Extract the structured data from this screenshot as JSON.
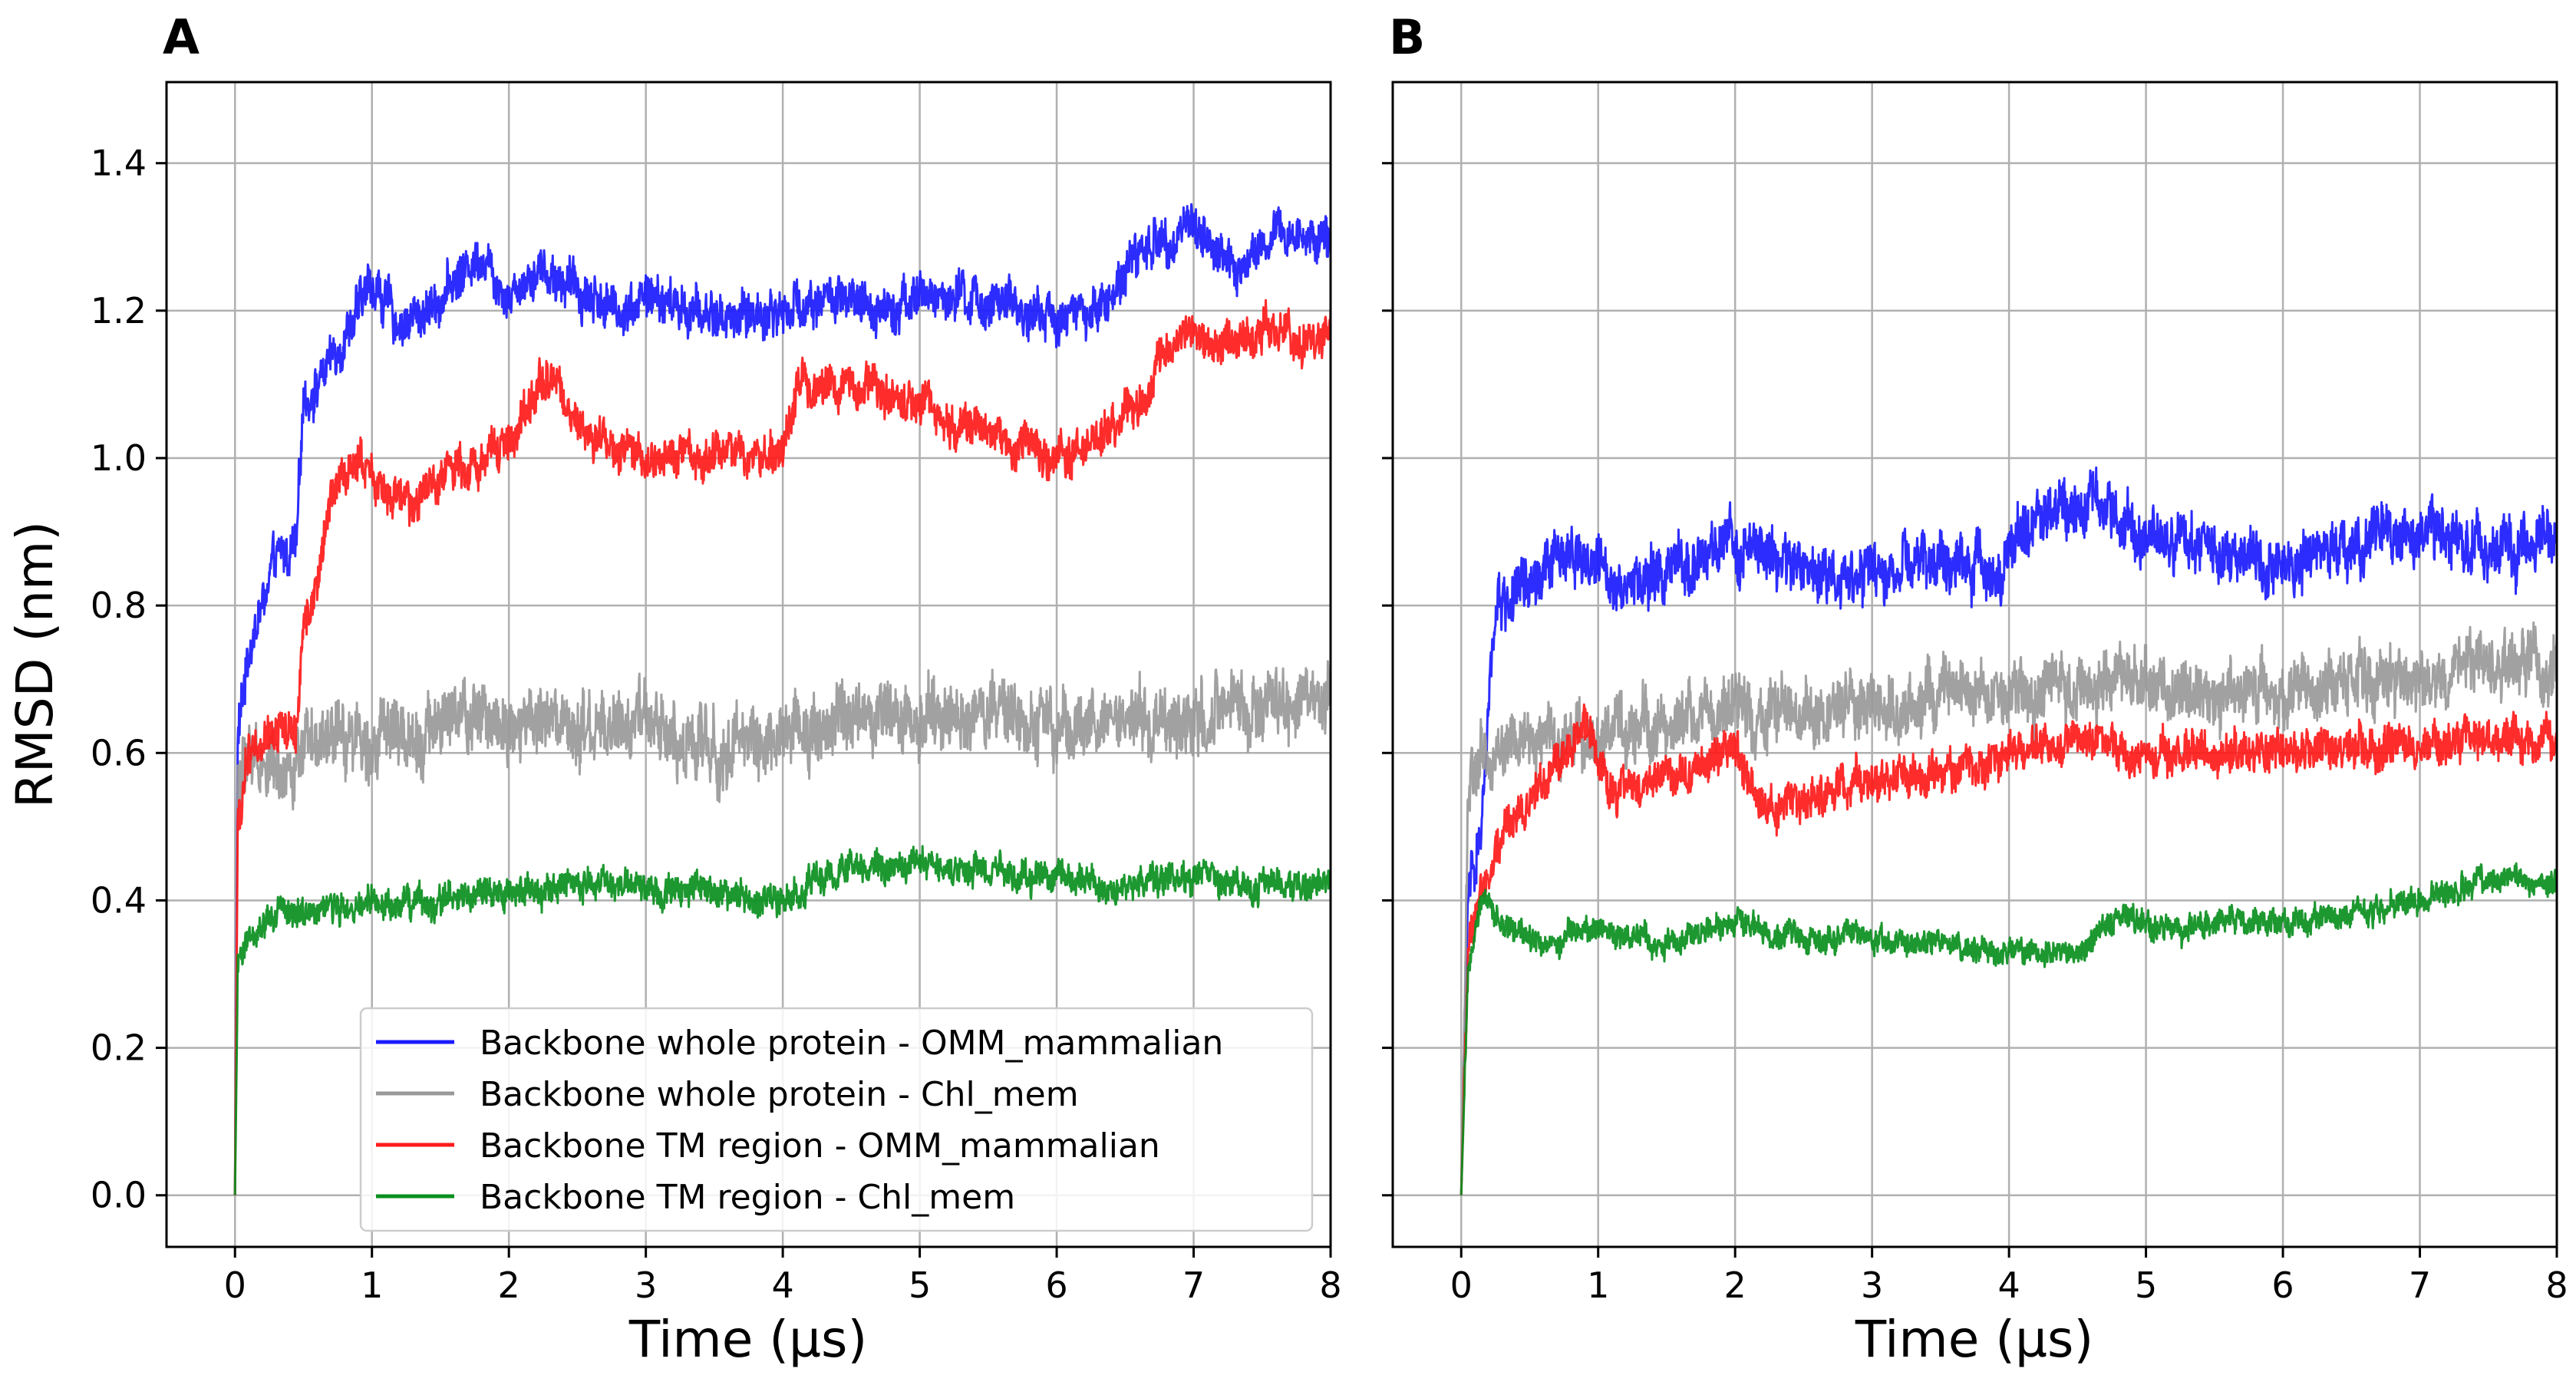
{
  "chart_data": [
    {
      "panel_label": "A",
      "type": "line",
      "xlabel": "Time (µs)",
      "ylabel": "RMSD (nm)",
      "xlim": [
        -0.5,
        8
      ],
      "ylim": [
        -0.07,
        1.51
      ],
      "xticks": [
        0,
        1,
        2,
        3,
        4,
        5,
        6,
        7,
        8
      ],
      "xtick_labels": [
        "0",
        "1",
        "2",
        "3",
        "4",
        "5",
        "6",
        "7",
        "8"
      ],
      "yticks": [
        0.0,
        0.2,
        0.4,
        0.6,
        0.8,
        1.0,
        1.2,
        1.4
      ],
      "ytick_labels": [
        "0.0",
        "0.2",
        "0.4",
        "0.6",
        "0.8",
        "1.0",
        "1.2",
        "1.4"
      ],
      "grid": true,
      "legend_position": "lower-center",
      "series": [
        {
          "name": "Backbone whole protein - OMM_mammalian",
          "color": "#1a1aff",
          "noise": 0.045,
          "points": [
            [
              0,
              0.0
            ],
            [
              0.02,
              0.62
            ],
            [
              0.1,
              0.74
            ],
            [
              0.2,
              0.8
            ],
            [
              0.3,
              0.86
            ],
            [
              0.45,
              0.88
            ],
            [
              0.5,
              1.08
            ],
            [
              0.6,
              1.1
            ],
            [
              0.75,
              1.15
            ],
            [
              0.9,
              1.2
            ],
            [
              1.0,
              1.24
            ],
            [
              1.2,
              1.18
            ],
            [
              1.4,
              1.2
            ],
            [
              1.6,
              1.24
            ],
            [
              1.8,
              1.28
            ],
            [
              2.0,
              1.22
            ],
            [
              2.2,
              1.26
            ],
            [
              2.5,
              1.23
            ],
            [
              2.8,
              1.2
            ],
            [
              3.0,
              1.22
            ],
            [
              3.3,
              1.2
            ],
            [
              3.6,
              1.19
            ],
            [
              4.0,
              1.2
            ],
            [
              4.3,
              1.22
            ],
            [
              4.6,
              1.2
            ],
            [
              5.0,
              1.22
            ],
            [
              5.5,
              1.21
            ],
            [
              6.0,
              1.19
            ],
            [
              6.3,
              1.2
            ],
            [
              6.6,
              1.28
            ],
            [
              7.0,
              1.32
            ],
            [
              7.3,
              1.25
            ],
            [
              7.6,
              1.3
            ],
            [
              8.0,
              1.3
            ]
          ]
        },
        {
          "name": "Backbone whole protein - Chl_mem",
          "color": "#999999",
          "noise": 0.065,
          "points": [
            [
              0,
              0.0
            ],
            [
              0.02,
              0.55
            ],
            [
              0.1,
              0.6
            ],
            [
              0.3,
              0.58
            ],
            [
              0.6,
              0.6
            ],
            [
              0.9,
              0.63
            ],
            [
              1.2,
              0.62
            ],
            [
              1.5,
              0.64
            ],
            [
              2.0,
              0.65
            ],
            [
              2.5,
              0.62
            ],
            [
              3.0,
              0.64
            ],
            [
              3.5,
              0.6
            ],
            [
              4.0,
              0.63
            ],
            [
              4.5,
              0.64
            ],
            [
              5.0,
              0.65
            ],
            [
              5.5,
              0.66
            ],
            [
              6.0,
              0.62
            ],
            [
              6.5,
              0.65
            ],
            [
              7.0,
              0.64
            ],
            [
              7.5,
              0.66
            ],
            [
              8.0,
              0.67
            ]
          ]
        },
        {
          "name": "Backbone TM region - OMM_mammalian",
          "color": "#ff1a1a",
          "noise": 0.04,
          "points": [
            [
              0,
              0.0
            ],
            [
              0.02,
              0.5
            ],
            [
              0.1,
              0.6
            ],
            [
              0.3,
              0.64
            ],
            [
              0.45,
              0.62
            ],
            [
              0.5,
              0.78
            ],
            [
              0.6,
              0.82
            ],
            [
              0.7,
              0.95
            ],
            [
              0.9,
              1.0
            ],
            [
              1.1,
              0.95
            ],
            [
              1.3,
              0.93
            ],
            [
              1.5,
              0.98
            ],
            [
              1.8,
              1.0
            ],
            [
              2.0,
              1.02
            ],
            [
              2.3,
              1.12
            ],
            [
              2.5,
              1.04
            ],
            [
              2.8,
              1.0
            ],
            [
              3.2,
              1.0
            ],
            [
              3.6,
              1.01
            ],
            [
              4.0,
              1.0
            ],
            [
              4.1,
              1.1
            ],
            [
              4.5,
              1.1
            ],
            [
              5.0,
              1.07
            ],
            [
              5.5,
              1.04
            ],
            [
              6.0,
              1.0
            ],
            [
              6.3,
              1.03
            ],
            [
              6.6,
              1.08
            ],
            [
              6.9,
              1.17
            ],
            [
              7.2,
              1.15
            ],
            [
              7.5,
              1.18
            ],
            [
              7.8,
              1.16
            ],
            [
              8.0,
              1.17
            ]
          ]
        },
        {
          "name": "Backbone TM region - Chl_mem",
          "color": "#0a8f1e",
          "noise": 0.03,
          "points": [
            [
              0,
              0.0
            ],
            [
              0.02,
              0.3
            ],
            [
              0.1,
              0.36
            ],
            [
              0.3,
              0.38
            ],
            [
              0.6,
              0.39
            ],
            [
              1.0,
              0.39
            ],
            [
              1.5,
              0.4
            ],
            [
              2.0,
              0.41
            ],
            [
              2.5,
              0.42
            ],
            [
              3.0,
              0.42
            ],
            [
              3.5,
              0.41
            ],
            [
              4.0,
              0.4
            ],
            [
              4.5,
              0.44
            ],
            [
              5.0,
              0.45
            ],
            [
              5.5,
              0.44
            ],
            [
              6.0,
              0.43
            ],
            [
              6.5,
              0.42
            ],
            [
              7.0,
              0.43
            ],
            [
              7.5,
              0.42
            ],
            [
              8.0,
              0.42
            ]
          ]
        }
      ],
      "legend": [
        "Backbone whole protein - OMM_mammalian",
        "Backbone whole protein - Chl_mem",
        "Backbone TM region - OMM_mammalian",
        "Backbone TM region - Chl_mem"
      ]
    },
    {
      "panel_label": "B",
      "type": "line",
      "xlabel": "Time (µs)",
      "ylabel": "",
      "xlim": [
        -0.5,
        8
      ],
      "ylim": [
        -0.07,
        1.51
      ],
      "xticks": [
        0,
        1,
        2,
        3,
        4,
        5,
        6,
        7,
        8
      ],
      "xtick_labels": [
        "0",
        "1",
        "2",
        "3",
        "4",
        "5",
        "6",
        "7",
        "8"
      ],
      "yticks": [
        0.0,
        0.2,
        0.4,
        0.6,
        0.8,
        1.0,
        1.2,
        1.4
      ],
      "grid": true,
      "series": [
        {
          "name": "Backbone whole protein - OMM_mammalian",
          "color": "#1a1aff",
          "noise": 0.055,
          "points": [
            [
              0,
              0.0
            ],
            [
              0.05,
              0.4
            ],
            [
              0.15,
              0.5
            ],
            [
              0.25,
              0.8
            ],
            [
              0.5,
              0.82
            ],
            [
              0.8,
              0.88
            ],
            [
              1.0,
              0.85
            ],
            [
              1.3,
              0.83
            ],
            [
              1.6,
              0.85
            ],
            [
              2.0,
              0.88
            ],
            [
              2.5,
              0.85
            ],
            [
              3.0,
              0.84
            ],
            [
              3.5,
              0.86
            ],
            [
              3.9,
              0.85
            ],
            [
              4.2,
              0.92
            ],
            [
              4.6,
              0.95
            ],
            [
              5.0,
              0.9
            ],
            [
              5.5,
              0.88
            ],
            [
              6.0,
              0.86
            ],
            [
              6.5,
              0.88
            ],
            [
              7.0,
              0.9
            ],
            [
              7.5,
              0.88
            ],
            [
              8.0,
              0.88
            ]
          ]
        },
        {
          "name": "Backbone whole protein - Chl_mem",
          "color": "#999999",
          "noise": 0.06,
          "points": [
            [
              0,
              0.0
            ],
            [
              0.05,
              0.55
            ],
            [
              0.2,
              0.6
            ],
            [
              0.5,
              0.62
            ],
            [
              1.0,
              0.62
            ],
            [
              1.5,
              0.64
            ],
            [
              2.0,
              0.66
            ],
            [
              2.5,
              0.65
            ],
            [
              3.0,
              0.66
            ],
            [
              3.5,
              0.67
            ],
            [
              4.0,
              0.68
            ],
            [
              4.5,
              0.69
            ],
            [
              5.0,
              0.7
            ],
            [
              5.5,
              0.68
            ],
            [
              6.0,
              0.68
            ],
            [
              6.5,
              0.7
            ],
            [
              7.0,
              0.7
            ],
            [
              7.5,
              0.72
            ],
            [
              8.0,
              0.72
            ]
          ]
        },
        {
          "name": "Backbone TM region - OMM_mammalian",
          "color": "#ff1a1a",
          "noise": 0.04,
          "points": [
            [
              0,
              0.0
            ],
            [
              0.05,
              0.35
            ],
            [
              0.2,
              0.45
            ],
            [
              0.4,
              0.52
            ],
            [
              0.7,
              0.58
            ],
            [
              0.9,
              0.64
            ],
            [
              1.1,
              0.54
            ],
            [
              1.5,
              0.57
            ],
            [
              2.0,
              0.6
            ],
            [
              2.3,
              0.52
            ],
            [
              2.7,
              0.55
            ],
            [
              3.0,
              0.56
            ],
            [
              3.5,
              0.57
            ],
            [
              4.0,
              0.6
            ],
            [
              4.5,
              0.62
            ],
            [
              5.0,
              0.6
            ],
            [
              5.5,
              0.6
            ],
            [
              6.0,
              0.6
            ],
            [
              6.5,
              0.61
            ],
            [
              7.0,
              0.62
            ],
            [
              7.5,
              0.62
            ],
            [
              8.0,
              0.62
            ]
          ]
        },
        {
          "name": "Backbone TM region - Chl_mem",
          "color": "#0a8f1e",
          "noise": 0.025,
          "points": [
            [
              0,
              0.0
            ],
            [
              0.05,
              0.3
            ],
            [
              0.15,
              0.42
            ],
            [
              0.3,
              0.36
            ],
            [
              0.6,
              0.34
            ],
            [
              1.0,
              0.36
            ],
            [
              1.5,
              0.34
            ],
            [
              2.0,
              0.37
            ],
            [
              2.5,
              0.35
            ],
            [
              3.0,
              0.35
            ],
            [
              3.5,
              0.34
            ],
            [
              4.0,
              0.33
            ],
            [
              4.5,
              0.33
            ],
            [
              4.8,
              0.38
            ],
            [
              5.2,
              0.36
            ],
            [
              5.5,
              0.37
            ],
            [
              6.0,
              0.37
            ],
            [
              6.5,
              0.38
            ],
            [
              7.0,
              0.4
            ],
            [
              7.5,
              0.43
            ],
            [
              8.0,
              0.42
            ]
          ]
        }
      ]
    }
  ]
}
